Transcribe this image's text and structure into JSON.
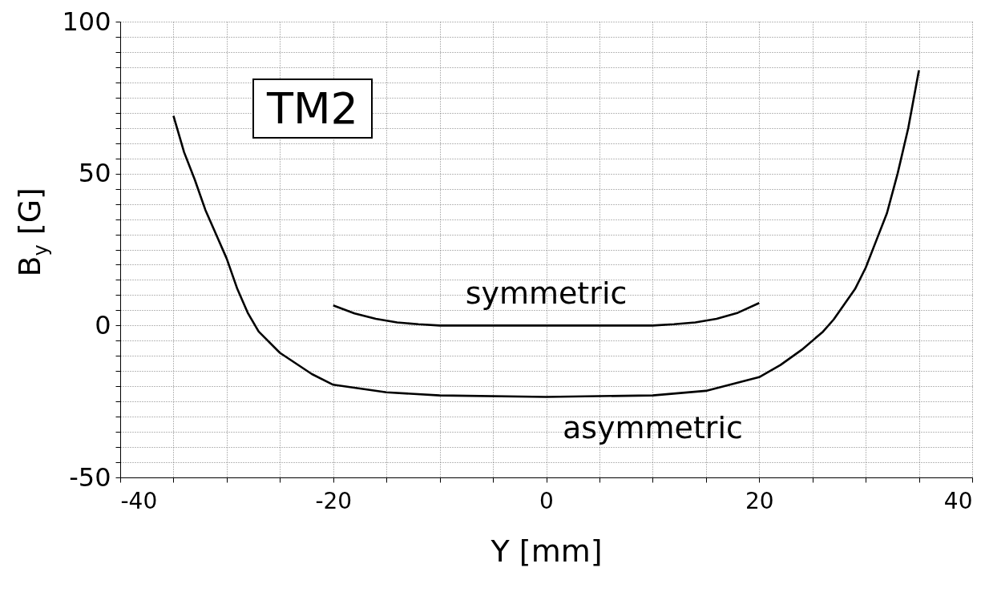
{
  "chart_data": {
    "type": "line",
    "xlabel": "Y [mm]",
    "ylabel": "B$_{y}$ [G]",
    "annotations": [
      "TM2"
    ],
    "xlim": [
      -40,
      40
    ],
    "ylim": [
      -50,
      100
    ],
    "xticks": [
      -40,
      {
        "value": -35,
        "label": null
      },
      {
        "value": -30,
        "label": null
      },
      {
        "value": -25,
        "label": null
      },
      -20,
      {
        "value": -15,
        "label": null
      },
      {
        "value": -10,
        "label": null
      },
      {
        "value": -5,
        "label": null
      },
      0,
      {
        "value": 5,
        "label": null
      },
      {
        "value": 10,
        "label": null
      },
      {
        "value": 15,
        "label": null
      },
      20,
      {
        "value": 25,
        "label": null
      },
      {
        "value": 30,
        "label": null
      },
      {
        "value": 35,
        "label": null
      },
      40
    ],
    "yticks": [
      -50,
      {
        "value": -45,
        "label": null
      },
      {
        "value": -40,
        "label": null
      },
      {
        "value": -35,
        "label": null
      },
      {
        "value": -30,
        "label": null
      },
      {
        "value": -25,
        "label": null
      },
      {
        "value": -20,
        "label": null
      },
      {
        "value": -15,
        "label": null
      },
      {
        "value": -10,
        "label": null
      },
      {
        "value": -5,
        "label": null
      },
      0,
      {
        "value": 5,
        "label": null
      },
      {
        "value": 10,
        "label": null
      },
      {
        "value": 15,
        "label": null
      },
      {
        "value": 20,
        "label": null
      },
      {
        "value": 25,
        "label": null
      },
      {
        "value": 30,
        "label": null
      },
      {
        "value": 35,
        "label": null
      },
      {
        "value": 40,
        "label": null
      },
      {
        "value": 45,
        "label": null
      },
      50,
      {
        "value": 55,
        "label": null
      },
      {
        "value": 60,
        "label": null
      },
      {
        "value": 65,
        "label": null
      },
      {
        "value": 70,
        "label": null
      },
      {
        "value": 75,
        "label": null
      },
      {
        "value": 80,
        "label": null
      },
      {
        "value": 85,
        "label": null
      },
      {
        "value": 90,
        "label": null
      },
      {
        "value": 95,
        "label": null
      },
      100
    ],
    "grid": true,
    "line_style": "solid",
    "marker": "none",
    "series": [
      {
        "name": "symmetric",
        "color": "#000000",
        "x": [
          -20,
          -18,
          -16,
          -14,
          -12,
          -10,
          -5,
          0,
          5,
          10,
          12,
          14,
          16,
          18,
          20
        ],
        "values": [
          6.6,
          4,
          2.2,
          1,
          0.4,
          0,
          0,
          0,
          0,
          0,
          0.4,
          1,
          2.2,
          4.2,
          7.4
        ]
      },
      {
        "name": "asymmetric",
        "color": "#000000",
        "x": [
          -35,
          -34,
          -33,
          -32,
          -31,
          -30,
          -29,
          -28,
          -27,
          -25,
          -22,
          -20,
          -15,
          -10,
          0,
          10,
          15,
          20,
          22,
          24,
          26,
          27,
          28,
          29,
          30,
          31,
          32,
          33,
          34,
          35
        ],
        "values": [
          69,
          57,
          48,
          38,
          30,
          22,
          12,
          4,
          -2,
          -9,
          -16,
          -19.5,
          -22,
          -23,
          -23.5,
          -23,
          -21.5,
          -17,
          -13,
          -8,
          -2,
          2,
          7,
          12,
          19,
          28,
          37,
          50,
          65,
          84
        ]
      }
    ]
  }
}
